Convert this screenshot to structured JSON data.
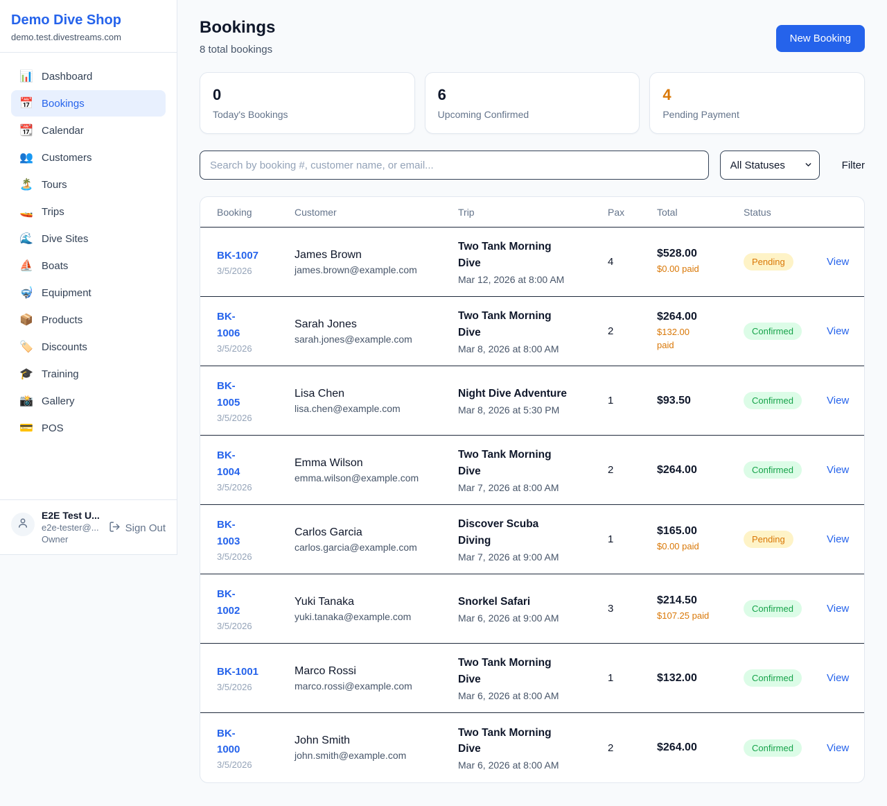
{
  "sidebar": {
    "brand": {
      "name": "Demo Dive Shop",
      "domain": "demo.test.divestreams.com"
    },
    "items": [
      {
        "label": "Dashboard",
        "icon_name": "bar-chart-icon",
        "glyph": "📊",
        "active": false
      },
      {
        "label": "Bookings",
        "icon_name": "calendar-icon",
        "glyph": "📅",
        "active": true
      },
      {
        "label": "Calendar",
        "icon_name": "tear-off-calendar-icon",
        "glyph": "📆",
        "active": false
      },
      {
        "label": "Customers",
        "icon_name": "people-icon",
        "glyph": "👥",
        "active": false
      },
      {
        "label": "Tours",
        "icon_name": "island-icon",
        "glyph": "🏝️",
        "active": false
      },
      {
        "label": "Trips",
        "icon_name": "speedboat-icon",
        "glyph": "🚤",
        "active": false
      },
      {
        "label": "Dive Sites",
        "icon_name": "wave-icon",
        "glyph": "🌊",
        "active": false
      },
      {
        "label": "Boats",
        "icon_name": "sailboat-icon",
        "glyph": "⛵",
        "active": false
      },
      {
        "label": "Equipment",
        "icon_name": "diving-mask-icon",
        "glyph": "🤿",
        "active": false
      },
      {
        "label": "Products",
        "icon_name": "package-icon",
        "glyph": "📦",
        "active": false
      },
      {
        "label": "Discounts",
        "icon_name": "tag-icon",
        "glyph": "🏷️",
        "active": false
      },
      {
        "label": "Training",
        "icon_name": "graduation-cap-icon",
        "glyph": "🎓",
        "active": false
      },
      {
        "label": "Gallery",
        "icon_name": "camera-icon",
        "glyph": "📸",
        "active": false
      },
      {
        "label": "POS",
        "icon_name": "credit-card-icon",
        "glyph": "💳",
        "active": false
      }
    ],
    "user": {
      "name": "E2E Test U...",
      "email": "e2e-tester@...",
      "role": "Owner",
      "sign_out_label": "Sign Out"
    }
  },
  "header": {
    "title": "Bookings",
    "subtitle": "8 total bookings",
    "new_booking_label": "New Booking"
  },
  "stats": [
    {
      "value": "0",
      "label": "Today's Bookings",
      "highlight": false
    },
    {
      "value": "6",
      "label": "Upcoming Confirmed",
      "highlight": false
    },
    {
      "value": "4",
      "label": "Pending Payment",
      "highlight": true
    }
  ],
  "filters": {
    "search_placeholder": "Search by booking #, customer name, or email...",
    "status_selected": "All Statuses",
    "filter_label": "Filter"
  },
  "table": {
    "columns": [
      "Booking",
      "Customer",
      "Trip",
      "Pax",
      "Total",
      "Status"
    ],
    "view_label": "View",
    "rows": [
      {
        "booking": "BK-1007",
        "date": "3/5/2026",
        "customer": "James Brown",
        "email": "james.brown@example.com",
        "trip": "Two Tank Morning\nDive",
        "trip_time": "Mar 12, 2026 at 8:00 AM",
        "pax": "4",
        "total": "$528.00",
        "paid": "$0.00 paid",
        "status": "Pending"
      },
      {
        "booking": "BK-\n1006",
        "date": "3/5/2026",
        "customer": "Sarah Jones",
        "email": "sarah.jones@example.com",
        "trip": "Two Tank Morning\nDive",
        "trip_time": "Mar 8, 2026 at 8:00 AM",
        "pax": "2",
        "total": "$264.00",
        "paid": "$132.00\npaid",
        "status": "Confirmed"
      },
      {
        "booking": "BK-\n1005",
        "date": "3/5/2026",
        "customer": "Lisa Chen",
        "email": "lisa.chen@example.com",
        "trip": "Night Dive Adventure",
        "trip_time": "Mar 8, 2026 at 5:30 PM",
        "pax": "1",
        "total": "$93.50",
        "paid": "",
        "status": "Confirmed"
      },
      {
        "booking": "BK-\n1004",
        "date": "3/5/2026",
        "customer": "Emma Wilson",
        "email": "emma.wilson@example.com",
        "trip": "Two Tank Morning\nDive",
        "trip_time": "Mar 7, 2026 at 8:00 AM",
        "pax": "2",
        "total": "$264.00",
        "paid": "",
        "status": "Confirmed"
      },
      {
        "booking": "BK-\n1003",
        "date": "3/5/2026",
        "customer": "Carlos Garcia",
        "email": "carlos.garcia@example.com",
        "trip": "Discover Scuba\nDiving",
        "trip_time": "Mar 7, 2026 at 9:00 AM",
        "pax": "1",
        "total": "$165.00",
        "paid": "$0.00 paid",
        "status": "Pending"
      },
      {
        "booking": "BK-\n1002",
        "date": "3/5/2026",
        "customer": "Yuki Tanaka",
        "email": "yuki.tanaka@example.com",
        "trip": "Snorkel Safari",
        "trip_time": "Mar 6, 2026 at 9:00 AM",
        "pax": "3",
        "total": "$214.50",
        "paid": "$107.25 paid",
        "status": "Confirmed"
      },
      {
        "booking": "BK-1001",
        "date": "3/5/2026",
        "customer": "Marco Rossi",
        "email": "marco.rossi@example.com",
        "trip": "Two Tank Morning\nDive",
        "trip_time": "Mar 6, 2026 at 8:00 AM",
        "pax": "1",
        "total": "$132.00",
        "paid": "",
        "status": "Confirmed"
      },
      {
        "booking": "BK-\n1000",
        "date": "3/5/2026",
        "customer": "John Smith",
        "email": "john.smith@example.com",
        "trip": "Two Tank Morning\nDive",
        "trip_time": "Mar 6, 2026 at 8:00 AM",
        "pax": "2",
        "total": "$264.00",
        "paid": "",
        "status": "Confirmed"
      }
    ]
  },
  "colors": {
    "accent": "#2563eb",
    "warning": "#d97706",
    "pending_bg": "#fef3c7",
    "pending_text": "#d97706",
    "confirmed_bg": "#dcfce7",
    "confirmed_text": "#16a34a"
  }
}
